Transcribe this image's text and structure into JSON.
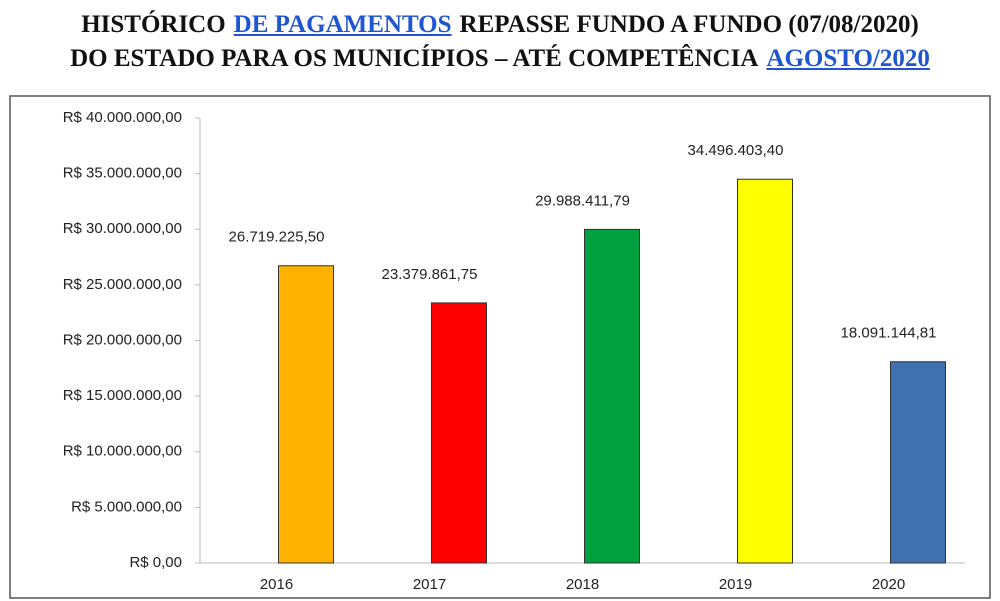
{
  "chart_data": {
    "type": "bar",
    "title": [
      [
        "HISTÓRICO",
        "DE PAGAMENTOS",
        "REPASSE FUNDO A FUNDO (07/08/2020)"
      ],
      [
        "DO ESTADO PARA OS MUNICÍPIOS – ATÉ COMPETÊNCIA",
        "AGOSTO/2020"
      ]
    ],
    "title_links": [
      [
        false,
        true,
        false
      ],
      [
        false,
        true
      ]
    ],
    "categories": [
      "2016",
      "2017",
      "2018",
      "2019",
      "2020"
    ],
    "values": [
      26719225.5,
      23379861.75,
      29988411.79,
      34496403.4,
      18091144.81
    ],
    "value_labels": [
      "26.719.225,50",
      "23.379.861,75",
      "29.988.411,79",
      "34.496.403,40",
      "18.091.144,81"
    ],
    "colors": [
      "#ffb300",
      "#ff0000",
      "#00a040",
      "#ffff00",
      "#3f70b0"
    ],
    "ylim": [
      0,
      40000000
    ],
    "yticks": [
      {
        "value": 0,
        "label": "R$ 0,00"
      },
      {
        "value": 5000000,
        "label": "R$ 5.000.000,00"
      },
      {
        "value": 10000000,
        "label": "R$ 10.000.000,00"
      },
      {
        "value": 15000000,
        "label": "R$ 15.000.000,00"
      },
      {
        "value": 20000000,
        "label": "R$ 20.000.000,00"
      },
      {
        "value": 25000000,
        "label": "R$ 25.000.000,00"
      },
      {
        "value": 30000000,
        "label": "R$ 30.000.000,00"
      },
      {
        "value": 35000000,
        "label": "R$ 35.000.000,00"
      },
      {
        "value": 40000000,
        "label": "R$ 40.000.000,00"
      }
    ],
    "grid": false
  }
}
